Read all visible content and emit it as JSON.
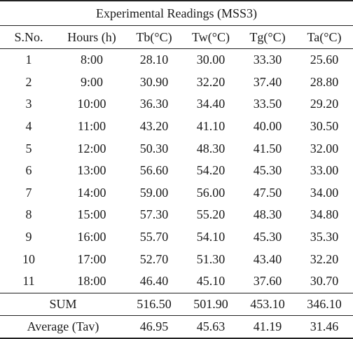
{
  "table": {
    "title": "Experimental Readings (MSS3)",
    "headers": [
      "S.No.",
      "Hours (h)",
      "Tb(°C)",
      "Tw(°C)",
      "Tg(°C)",
      "Ta(°C)"
    ],
    "rows": [
      [
        "1",
        "8:00",
        "28.10",
        "30.00",
        "33.30",
        "25.60"
      ],
      [
        "2",
        "9:00",
        "30.90",
        "32.20",
        "37.40",
        "28.80"
      ],
      [
        "3",
        "10:00",
        "36.30",
        "34.40",
        "33.50",
        "29.20"
      ],
      [
        "4",
        "11:00",
        "43.20",
        "41.10",
        "40.00",
        "30.50"
      ],
      [
        "5",
        "12:00",
        "50.30",
        "48.30",
        "41.50",
        "32.00"
      ],
      [
        "6",
        "13:00",
        "56.60",
        "54.20",
        "45.30",
        "33.00"
      ],
      [
        "7",
        "14:00",
        "59.00",
        "56.00",
        "47.50",
        "34.00"
      ],
      [
        "8",
        "15:00",
        "57.30",
        "55.20",
        "48.30",
        "34.80"
      ],
      [
        "9",
        "16:00",
        "55.70",
        "54.10",
        "45.30",
        "35.30"
      ],
      [
        "10",
        "17:00",
        "52.70",
        "51.30",
        "43.40",
        "32.20"
      ],
      [
        "11",
        "18:00",
        "46.40",
        "45.10",
        "37.60",
        "30.70"
      ]
    ],
    "sum": {
      "label": "SUM",
      "values": [
        "516.50",
        "501.90",
        "453.10",
        "346.10"
      ]
    },
    "average": {
      "label": "Average (Tav)",
      "values": [
        "46.95",
        "45.63",
        "41.19",
        "31.46"
      ]
    }
  }
}
